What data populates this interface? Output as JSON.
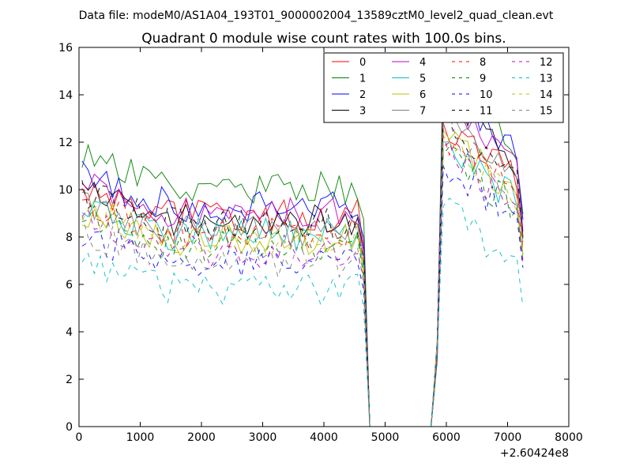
{
  "suptitle": "Data file: modeM0/AS1A04_193T01_9000002004_13589cztM0_level2_quad_clean.evt",
  "chart_data": {
    "type": "line",
    "title": "Quadrant 0 module wise count rates with 100.0s bins.",
    "xlabel": "",
    "ylabel": "",
    "x_offset_label": "+2.60424e8",
    "xlim": [
      0,
      8000
    ],
    "ylim": [
      0,
      16
    ],
    "xticks": [
      0,
      1000,
      2000,
      3000,
      4000,
      5000,
      6000,
      7000,
      8000
    ],
    "yticks": [
      0,
      2,
      4,
      6,
      8,
      10,
      12,
      14,
      16
    ],
    "legend_position": "top-right",
    "legend_columns": 4,
    "x_segments": [
      {
        "start": 50,
        "end": 4650,
        "step": 100
      },
      {
        "start": 4750,
        "end": 5750,
        "step": 1000
      },
      {
        "start": 5850,
        "end": 7250,
        "step": 100
      }
    ],
    "series": [
      {
        "name": "0",
        "color": "#ff0000",
        "dash": "solid",
        "base": 8.9,
        "spike": 12.8,
        "end": 10.5,
        "amp": 0.35,
        "seed": 1
      },
      {
        "name": "1",
        "color": "#008000",
        "dash": "solid",
        "base": 10.1,
        "spike": 15.5,
        "end": 11.5,
        "amp": 0.35,
        "seed": 2
      },
      {
        "name": "2",
        "color": "#0000ff",
        "dash": "solid",
        "base": 9.3,
        "spike": 14.4,
        "end": 11.2,
        "amp": 0.35,
        "seed": 3
      },
      {
        "name": "3",
        "color": "#000000",
        "dash": "solid",
        "base": 8.7,
        "spike": 14.5,
        "end": 10.3,
        "amp": 0.35,
        "seed": 4
      },
      {
        "name": "4",
        "color": "#bf00bf",
        "dash": "solid",
        "base": 9.0,
        "spike": 13.8,
        "end": 10.6,
        "amp": 0.35,
        "seed": 5
      },
      {
        "name": "5",
        "color": "#00bfbf",
        "dash": "solid",
        "base": 8.1,
        "spike": 12.0,
        "end": 9.3,
        "amp": 0.35,
        "seed": 6
      },
      {
        "name": "6",
        "color": "#bfbf00",
        "dash": "solid",
        "base": 7.9,
        "spike": 12.5,
        "end": 9.3,
        "amp": 0.35,
        "seed": 7
      },
      {
        "name": "7",
        "color": "#808080",
        "dash": "solid",
        "base": 8.2,
        "spike": 13.7,
        "end": 10.0,
        "amp": 0.35,
        "seed": 8
      },
      {
        "name": "8",
        "color": "#ff0000",
        "dash": "dashed",
        "base": 8.2,
        "spike": 12.3,
        "end": 9.7,
        "amp": 0.35,
        "seed": 9
      },
      {
        "name": "9",
        "color": "#008000",
        "dash": "dashed",
        "base": 7.6,
        "spike": 11.5,
        "end": 9.0,
        "amp": 0.35,
        "seed": 10
      },
      {
        "name": "10",
        "color": "#0000ff",
        "dash": "dashed",
        "base": 6.9,
        "spike": 11.0,
        "end": 8.6,
        "amp": 0.35,
        "seed": 11
      },
      {
        "name": "11",
        "color": "#000000",
        "dash": "dashed",
        "base": 8.6,
        "spike": 13.0,
        "end": 10.2,
        "amp": 0.35,
        "seed": 12
      },
      {
        "name": "12",
        "color": "#bf00bf",
        "dash": "dashed",
        "base": 7.4,
        "spike": 11.8,
        "end": 8.9,
        "amp": 0.35,
        "seed": 13
      },
      {
        "name": "13",
        "color": "#00bfbf",
        "dash": "dashed",
        "base": 5.8,
        "spike": 9.3,
        "end": 6.5,
        "amp": 0.35,
        "seed": 14
      },
      {
        "name": "14",
        "color": "#bfbf00",
        "dash": "dashed",
        "base": 7.9,
        "spike": 12.0,
        "end": 9.6,
        "amp": 0.35,
        "seed": 15
      },
      {
        "name": "15",
        "color": "#808080",
        "dash": "dashed",
        "base": 7.0,
        "spike": 12.8,
        "end": 9.1,
        "amp": 0.35,
        "seed": 16
      }
    ]
  }
}
